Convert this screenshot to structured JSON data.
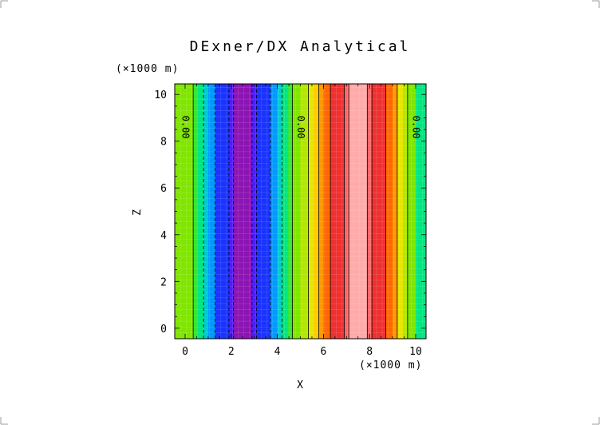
{
  "chart_data": {
    "type": "heatmap",
    "title": "DExner/DX Analytical",
    "xlabel": "X",
    "ylabel": "Z",
    "x_units": "(×1000 m)",
    "y_units": "(×1000 m)",
    "xlim": [
      -0.45,
      10.45
    ],
    "ylim": [
      -0.45,
      10.45
    ],
    "xticks": [
      0,
      2,
      4,
      6,
      8,
      10
    ],
    "yticks": [
      0,
      2,
      4,
      6,
      8,
      10
    ],
    "xtick_labels": [
      "0",
      "2",
      "4",
      "6",
      "8",
      "10"
    ],
    "ytick_labels": [
      "0",
      "2",
      "4",
      "6",
      "8",
      "10"
    ],
    "field_variation": "x only",
    "bands": [
      {
        "x0": -0.45,
        "x1": 0.35,
        "color": "#80e600"
      },
      {
        "x0": 0.35,
        "x1": 0.55,
        "color": "#33e633"
      },
      {
        "x0": 0.55,
        "x1": 0.8,
        "color": "#00e680"
      },
      {
        "x0": 0.8,
        "x1": 1.0,
        "color": "#00cccc"
      },
      {
        "x0": 1.0,
        "x1": 1.3,
        "color": "#0099ff"
      },
      {
        "x0": 1.3,
        "x1": 1.9,
        "color": "#1a33ff"
      },
      {
        "x0": 1.9,
        "x1": 2.1,
        "color": "#4d1aff"
      },
      {
        "x0": 2.1,
        "x1": 2.9,
        "color": "#8c14b4"
      },
      {
        "x0": 2.9,
        "x1": 3.1,
        "color": "#4d1aff"
      },
      {
        "x0": 3.1,
        "x1": 3.7,
        "color": "#1a33ff"
      },
      {
        "x0": 3.7,
        "x1": 4.0,
        "color": "#0099ff"
      },
      {
        "x0": 4.0,
        "x1": 4.2,
        "color": "#00cccc"
      },
      {
        "x0": 4.2,
        "x1": 4.45,
        "color": "#00e680"
      },
      {
        "x0": 4.45,
        "x1": 4.65,
        "color": "#33e633"
      },
      {
        "x0": 4.65,
        "x1": 5.0,
        "color": "#80e600"
      },
      {
        "x0": 5.0,
        "x1": 5.35,
        "color": "#b3e600"
      },
      {
        "x0": 5.35,
        "x1": 5.55,
        "color": "#e6e600"
      },
      {
        "x0": 5.55,
        "x1": 5.8,
        "color": "#ffcc00"
      },
      {
        "x0": 5.8,
        "x1": 6.0,
        "color": "#ff9900"
      },
      {
        "x0": 6.0,
        "x1": 6.3,
        "color": "#ff6600"
      },
      {
        "x0": 6.3,
        "x1": 6.9,
        "color": "#f03030"
      },
      {
        "x0": 6.9,
        "x1": 7.1,
        "color": "#ff6666"
      },
      {
        "x0": 7.1,
        "x1": 7.9,
        "color": "#ffaaaa"
      },
      {
        "x0": 7.9,
        "x1": 8.1,
        "color": "#ff6666"
      },
      {
        "x0": 8.1,
        "x1": 8.7,
        "color": "#f03030"
      },
      {
        "x0": 8.7,
        "x1": 9.0,
        "color": "#ff6600"
      },
      {
        "x0": 9.0,
        "x1": 9.2,
        "color": "#ff9900"
      },
      {
        "x0": 9.2,
        "x1": 9.45,
        "color": "#e6e600"
      },
      {
        "x0": 9.45,
        "x1": 9.65,
        "color": "#b3e600"
      },
      {
        "x0": 9.65,
        "x1": 10.0,
        "color": "#80e600"
      },
      {
        "x0": 10.0,
        "x1": 10.45,
        "color": "#00e680"
      }
    ],
    "contour_lines": [
      {
        "x": 0.35,
        "style": "solid"
      },
      {
        "x": 0.8,
        "style": "dashed"
      },
      {
        "x": 1.3,
        "style": "dashed"
      },
      {
        "x": 1.9,
        "style": "dashed"
      },
      {
        "x": 2.1,
        "style": "dashed"
      },
      {
        "x": 2.9,
        "style": "dashed"
      },
      {
        "x": 3.1,
        "style": "dashed"
      },
      {
        "x": 3.7,
        "style": "dashed"
      },
      {
        "x": 4.2,
        "style": "dashed"
      },
      {
        "x": 4.65,
        "style": "solid"
      },
      {
        "x": 5.35,
        "style": "solid"
      },
      {
        "x": 5.8,
        "style": "solid"
      },
      {
        "x": 6.3,
        "style": "solid"
      },
      {
        "x": 6.9,
        "style": "solid"
      },
      {
        "x": 7.1,
        "style": "solid"
      },
      {
        "x": 7.9,
        "style": "solid"
      },
      {
        "x": 8.1,
        "style": "solid"
      },
      {
        "x": 8.7,
        "style": "solid"
      },
      {
        "x": 9.2,
        "style": "solid"
      },
      {
        "x": 9.65,
        "style": "solid"
      }
    ],
    "contour_labels": [
      {
        "text": "0.00",
        "x": 0.0,
        "y": 8.6
      },
      {
        "text": "0.00",
        "x": 5.0,
        "y": 8.6
      },
      {
        "text": "0.00",
        "x": 10.0,
        "y": 8.6
      }
    ],
    "grid": true
  }
}
